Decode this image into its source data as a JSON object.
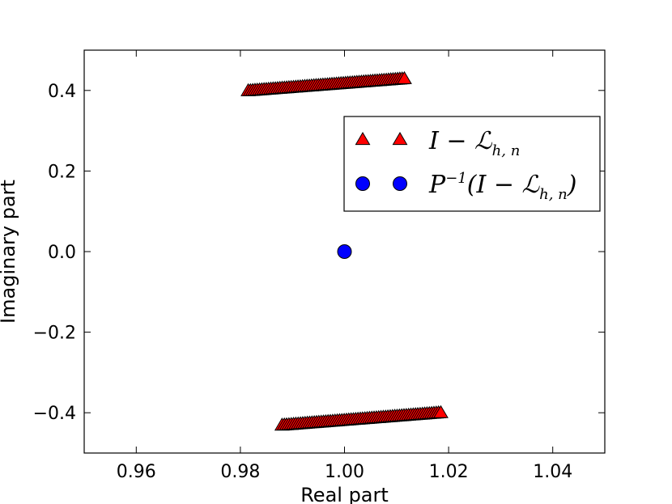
{
  "chart_data": {
    "type": "scatter",
    "xlabel": "Real part",
    "ylabel": "Imaginary part",
    "xlim": [
      0.95,
      1.05
    ],
    "ylim": [
      -0.5,
      0.5
    ],
    "xticks": [
      0.96,
      0.98,
      1.0,
      1.02,
      1.04
    ],
    "xtick_labels": [
      "0.96",
      "0.98",
      "1.00",
      "1.02",
      "1.04"
    ],
    "yticks": [
      0.4,
      0.2,
      0.0,
      -0.2,
      -0.4
    ],
    "ytick_labels": [
      "0.4",
      "0.2",
      "0.0",
      "−0.2",
      "−0.4"
    ],
    "grid": false,
    "legend": "center-right",
    "series": [
      {
        "name": "I − ℒ_{h,n}",
        "legend_parts": {
          "main": "I − ℒ",
          "sub": "h, n"
        },
        "marker": "triangle",
        "color": "#ff0000",
        "segments": [
          {
            "x_start": 0.9815,
            "y_start": 0.398,
            "x_end": 1.0115,
            "y_end": 0.428,
            "count": 70
          },
          {
            "x_start": 0.988,
            "y_start": -0.432,
            "x_end": 1.0185,
            "y_end": -0.401,
            "count": 70
          }
        ]
      },
      {
        "name": "P^{-1}(I − ℒ_{h,n})",
        "legend_parts": {
          "main": "P",
          "sup": "−1",
          "rest": "(I − ℒ",
          "sub": "h, n",
          "close": ")"
        },
        "marker": "circle",
        "color": "#0000ff",
        "points": [
          {
            "x": 1.0,
            "y": 0.0
          }
        ]
      }
    ]
  }
}
